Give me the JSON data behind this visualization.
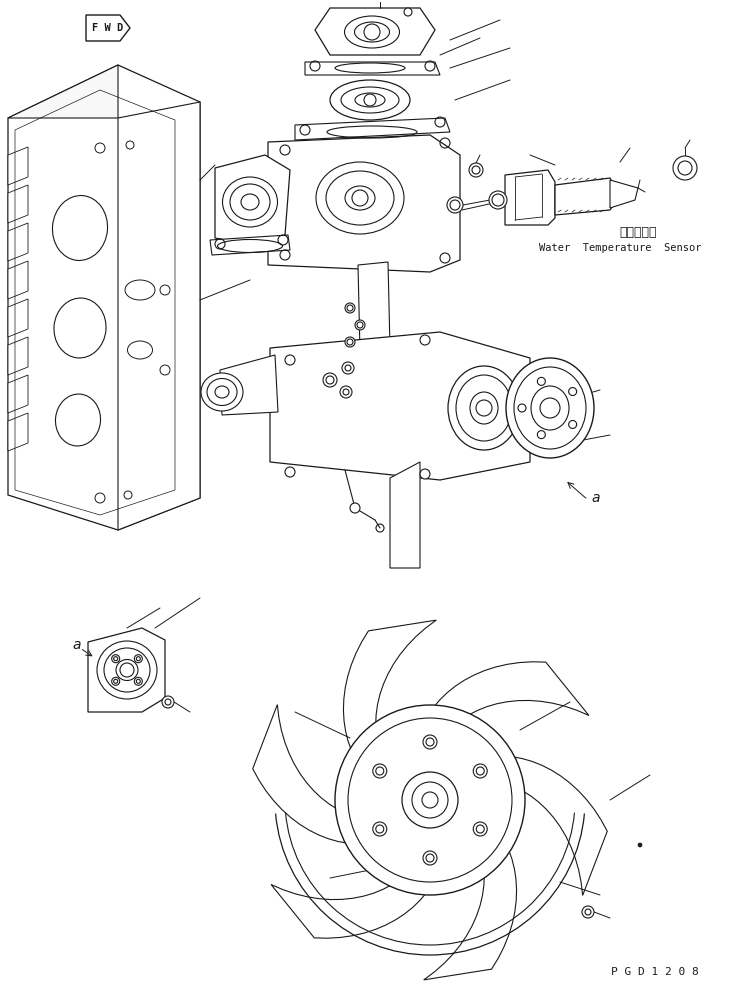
{
  "background_color": "#ffffff",
  "line_color": "#1a1a1a",
  "fig_width": 7.39,
  "fig_height": 9.89,
  "dpi": 100,
  "label_a_top": "a",
  "label_a_bottom": "a",
  "sensor_japanese": "水温センサ",
  "sensor_english": "Water  Temperature  Sensor",
  "page_code": "P G D 1 2 0 8",
  "fwd_text": "F W D"
}
